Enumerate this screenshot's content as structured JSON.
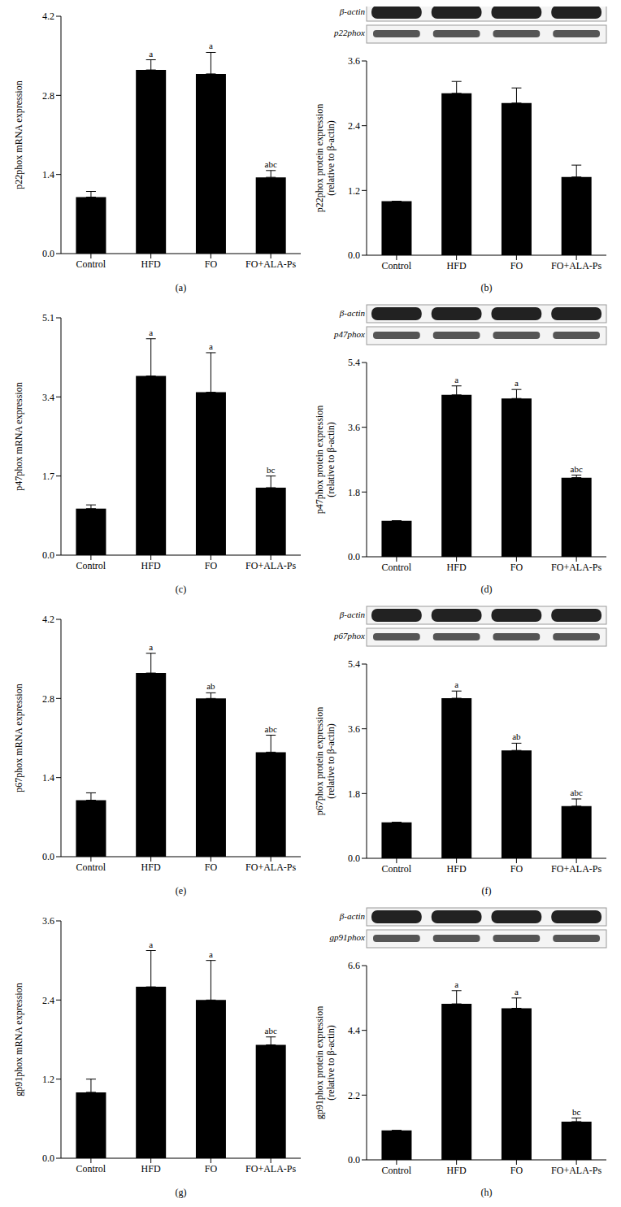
{
  "chart_data": [
    {
      "type": "bar",
      "caption": "(a)",
      "ylabel": [
        "p22phox mRNA expression"
      ],
      "categories": [
        "Control",
        "HFD",
        "FO",
        "FO+ALA-Ps"
      ],
      "values": [
        1.0,
        3.25,
        3.18,
        1.35
      ],
      "errors": [
        0.1,
        0.18,
        0.38,
        0.12
      ],
      "annotations": [
        null,
        "a",
        "a",
        "abc"
      ],
      "ylim": [
        0,
        4.2
      ],
      "yticks": [
        {
          "value": 0,
          "label": "0.0"
        },
        1.4,
        2.8,
        4.2
      ],
      "color": "#000000"
    },
    {
      "type": "bar",
      "caption": "(b)",
      "ylabel": [
        "p22phox protein expression",
        "(relative to β-actin)"
      ],
      "blot_labels": [
        "β-actin",
        "p22phox"
      ],
      "categories": [
        "Control",
        "HFD",
        "FO",
        "FO+ALA-Ps"
      ],
      "values": [
        1.0,
        3.0,
        2.82,
        1.45
      ],
      "errors": [
        0,
        0.22,
        0.28,
        0.22
      ],
      "ylim": [
        0,
        3.6
      ],
      "yticks": [
        {
          "value": 0,
          "label": "0.0"
        },
        1.2,
        2.4,
        3.6
      ],
      "color": "#000000"
    },
    {
      "type": "bar",
      "caption": "(c)",
      "ylabel": [
        "p47phox mRNA expression"
      ],
      "categories": [
        "Control",
        "HFD",
        "FO",
        "FO+ALA-Ps"
      ],
      "values": [
        1.0,
        3.85,
        3.5,
        1.45
      ],
      "errors": [
        0.08,
        0.8,
        0.85,
        0.25
      ],
      "annotations": [
        null,
        "a",
        "a",
        "bc"
      ],
      "ylim": [
        0,
        5.1
      ],
      "yticks": [
        {
          "value": 0,
          "label": "0.0"
        },
        1.7,
        3.4,
        5.1
      ],
      "color": "#000000"
    },
    {
      "type": "bar",
      "caption": "(d)",
      "ylabel": [
        "p47phox protein expression",
        "(relative to β-actin)"
      ],
      "blot_labels": [
        "β-actin",
        "p47phox"
      ],
      "categories": [
        "Control",
        "HFD",
        "FO",
        "FO+ALA-Ps"
      ],
      "values": [
        1.0,
        4.5,
        4.4,
        2.2
      ],
      "errors": [
        0,
        0.25,
        0.25,
        0.07
      ],
      "annotations": [
        null,
        "a",
        "a",
        "abc"
      ],
      "ylim": [
        0,
        5.4
      ],
      "yticks": [
        {
          "value": 0,
          "label": "0.0"
        },
        1.8,
        3.6,
        5.4
      ],
      "color": "#000000"
    },
    {
      "type": "bar",
      "caption": "(e)",
      "ylabel": [
        "p67phox mRNA expression"
      ],
      "categories": [
        "Control",
        "HFD",
        "FO",
        "FO+ALA-Ps"
      ],
      "values": [
        1.0,
        3.25,
        2.8,
        1.85
      ],
      "errors": [
        0.13,
        0.35,
        0.1,
        0.3
      ],
      "annotations": [
        null,
        "a",
        "ab",
        "abc"
      ],
      "ylim": [
        0,
        4.2
      ],
      "yticks": [
        {
          "value": 0,
          "label": "0.0"
        },
        1.4,
        2.8,
        4.2
      ],
      "color": "#000000"
    },
    {
      "type": "bar",
      "caption": "(f)",
      "ylabel": [
        "p67phox protein expression",
        "(relative to β-actin)"
      ],
      "blot_labels": [
        "β-actin",
        "p67phox"
      ],
      "categories": [
        "Control",
        "HFD",
        "FO",
        "FO+ALA-Ps"
      ],
      "values": [
        1.0,
        4.45,
        3.0,
        1.45
      ],
      "errors": [
        0,
        0.2,
        0.2,
        0.2
      ],
      "annotations": [
        null,
        "a",
        "ab",
        "abc"
      ],
      "ylim": [
        0,
        5.4
      ],
      "yticks": [
        {
          "value": 0,
          "label": "0.0"
        },
        1.8,
        3.6,
        5.4
      ],
      "color": "#000000"
    },
    {
      "type": "bar",
      "caption": "(g)",
      "ylabel": [
        "gp91phox mRNA expression"
      ],
      "categories": [
        "Control",
        "HFD",
        "FO",
        "FO+ALA-Ps"
      ],
      "values": [
        1.0,
        2.6,
        2.4,
        1.72
      ],
      "errors": [
        0.2,
        0.55,
        0.6,
        0.12
      ],
      "annotations": [
        null,
        "a",
        "a",
        "abc"
      ],
      "ylim": [
        0,
        3.6
      ],
      "yticks": [
        {
          "value": 0,
          "label": "0.0"
        },
        1.2,
        2.4,
        3.6
      ],
      "color": "#000000"
    },
    {
      "type": "bar",
      "caption": "(h)",
      "ylabel": [
        "gp91phox protein expression",
        "(relative to β-actin)"
      ],
      "blot_labels": [
        "β-actin",
        "gp91phox"
      ],
      "categories": [
        "Control",
        "HFD",
        "FO",
        "FO+ALA-Ps"
      ],
      "values": [
        1.0,
        5.3,
        5.15,
        1.3
      ],
      "errors": [
        0,
        0.45,
        0.35,
        0.12
      ],
      "annotations": [
        null,
        "a",
        "a",
        "bc"
      ],
      "ylim": [
        0,
        6.6
      ],
      "yticks": [
        {
          "value": 0,
          "label": "0.0"
        },
        2.2,
        4.4,
        6.6
      ],
      "color": "#000000"
    }
  ]
}
